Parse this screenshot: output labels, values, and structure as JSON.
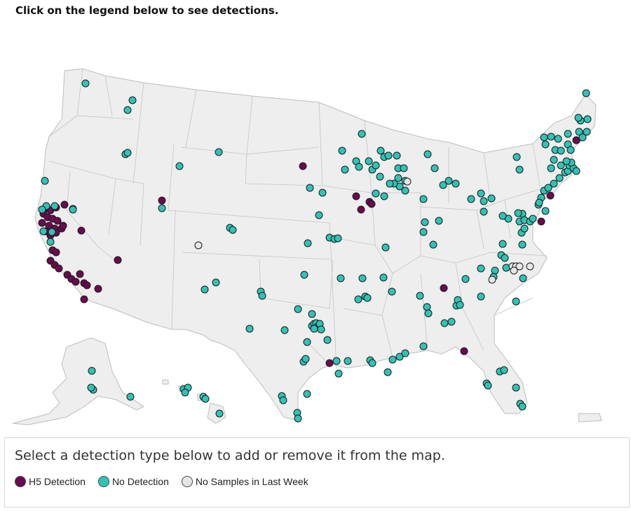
{
  "instruction": "Click on the legend below to see detections.",
  "legend": {
    "title": "Select a detection type below to add or remove it from the map.",
    "items": [
      {
        "label": "H5 Detection",
        "color": "#6b0a4f"
      },
      {
        "label": "No Detection",
        "color": "#2ec4b6"
      },
      {
        "label": "No Samples in Last Week",
        "color": "#e6e6e6"
      }
    ]
  },
  "colors": {
    "land": "#eeeeee",
    "state_border": "#bdbdbd",
    "h5": "#6b0a4f",
    "none": "#2ec4b6",
    "nosample": "#e6e6e6"
  },
  "map": {
    "region": "United States",
    "markers_shown": "wastewater sampling sites by detection status"
  }
}
